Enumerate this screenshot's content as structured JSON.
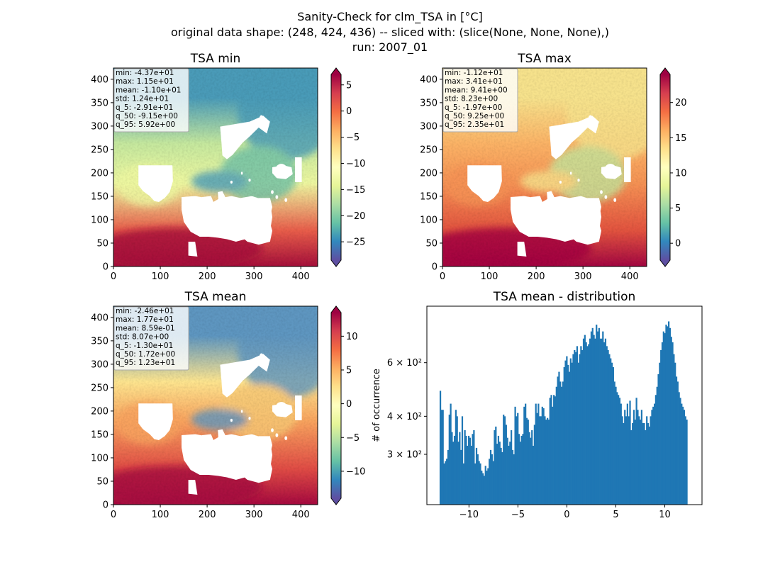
{
  "figure": {
    "title_lines": [
      "Sanity-Check for clm_TSA in [°C]",
      "original data shape: (248, 424, 436) -- sliced with: (slice(None, None, None),)",
      "run: 2007_01"
    ]
  },
  "colors": {
    "bar": "#1f77b4",
    "axes": "#000000",
    "background": "#ffffff"
  },
  "colormap": {
    "name": "Spectral_r",
    "stops": [
      "#5e4fa2",
      "#3288bd",
      "#66c2a5",
      "#abdda4",
      "#e6f598",
      "#ffffbf",
      "#fee08b",
      "#fdae61",
      "#f46d43",
      "#d53e4f",
      "#9e0142"
    ]
  },
  "chart_data": [
    {
      "type": "heatmap",
      "title": "TSA min",
      "xlim": [
        0,
        436
      ],
      "ylim": [
        0,
        424
      ],
      "x_ticks": [
        "0",
        "100",
        "200",
        "300",
        "400"
      ],
      "y_ticks": [
        "0",
        "50",
        "100",
        "150",
        "200",
        "250",
        "300",
        "350",
        "400"
      ],
      "colorbar": {
        "range": [
          -28.5,
          7
        ],
        "ticks": [
          "5",
          "0",
          "−5",
          "−10",
          "−15",
          "−20",
          "−25"
        ],
        "tick_values": [
          5,
          0,
          -5,
          -10,
          -15,
          -20,
          -25
        ]
      },
      "stats": [
        "min: -4.37e+01",
        "max: 1.15e+01",
        "mean: -1.10e+01",
        "std: 1.24e+01",
        "q_5: -2.91e+01",
        "q_50: -9.15e+00",
        "q_95: 5.92e+00"
      ]
    },
    {
      "type": "heatmap",
      "title": "TSA max",
      "xlim": [
        0,
        436
      ],
      "ylim": [
        0,
        424
      ],
      "x_ticks": [
        "0",
        "100",
        "200",
        "300",
        "400"
      ],
      "y_ticks": [
        "0",
        "50",
        "100",
        "150",
        "200",
        "250",
        "300",
        "350",
        "400"
      ],
      "colorbar": {
        "range": [
          -2.4,
          24
        ],
        "ticks": [
          "20",
          "15",
          "10",
          "5",
          "0"
        ],
        "tick_values": [
          20,
          15,
          10,
          5,
          0
        ]
      },
      "stats": [
        "min: -1.12e+01",
        "max: 3.41e+01",
        "mean: 9.41e+00",
        "std: 8.23e+00",
        "q_5: -1.97e+00",
        "q_50: 9.25e+00",
        "q_95: 2.35e+01"
      ]
    },
    {
      "type": "heatmap",
      "title": "TSA mean",
      "xlim": [
        0,
        436
      ],
      "ylim": [
        0,
        424
      ],
      "x_ticks": [
        "0",
        "100",
        "200",
        "300",
        "400"
      ],
      "y_ticks": [
        "0",
        "50",
        "100",
        "150",
        "200",
        "250",
        "300",
        "350",
        "400"
      ],
      "colorbar": {
        "range": [
          -14,
          13.5
        ],
        "ticks": [
          "10",
          "5",
          "0",
          "−5",
          "−10"
        ],
        "tick_values": [
          10,
          5,
          0,
          -5,
          -10
        ]
      },
      "stats": [
        "min: -2.46e+01",
        "max: 1.77e+01",
        "mean: 8.59e-01",
        "std: 8.07e+00",
        "q_5: -1.30e+01",
        "q_50: 1.72e+00",
        "q_95: 1.23e+01"
      ]
    },
    {
      "type": "bar",
      "title": "TSA mean - distribution",
      "ylabel": "# of occurrence",
      "y_scale": "log",
      "xlim": [
        -14.3,
        13.8
      ],
      "ylim": [
        205,
        920
      ],
      "x_ticks": [
        "−10",
        "−5",
        "0",
        "5",
        "10"
      ],
      "x_tick_values": [
        -10,
        -5,
        0,
        5,
        10
      ],
      "y_ticks": [
        "3 × 10²",
        "4 × 10²",
        "6 × 10²"
      ],
      "y_tick_values": [
        300,
        400,
        600
      ],
      "bin_range": [
        -13.0,
        12.3
      ],
      "values": [
        485,
        420,
        420,
        280,
        285,
        290,
        310,
        405,
        440,
        355,
        330,
        345,
        420,
        400,
        330,
        355,
        310,
        400,
        280,
        360,
        345,
        320,
        345,
        340,
        320,
        350,
        360,
        280,
        315,
        300,
        285,
        280,
        265,
        260,
        255,
        275,
        265,
        270,
        290,
        310,
        300,
        285,
        360,
        370,
        325,
        345,
        330,
        315,
        305,
        405,
        400,
        375,
        340,
        320,
        330,
        360,
        310,
        300,
        430,
        400,
        410,
        350,
        330,
        345,
        350,
        430,
        440,
        395,
        390,
        355,
        340,
        360,
        320,
        375,
        440,
        410,
        440,
        400,
        400,
        430,
        425,
        400,
        390,
        395,
        390,
        460,
        470,
        430,
        470,
        465,
        500,
        540,
        560,
        520,
        500,
        520,
        580,
        610,
        630,
        590,
        560,
        620,
        600,
        640,
        660,
        650,
        680,
        600,
        640,
        680,
        660,
        720,
        740,
        700,
        680,
        690,
        720,
        760,
        780,
        740,
        720,
        800,
        760,
        780,
        720,
        720,
        760,
        700,
        720,
        680,
        660,
        640,
        620,
        600,
        580,
        520,
        500,
        480,
        470,
        460,
        440,
        400,
        380,
        420,
        400,
        440,
        400,
        450,
        360,
        380,
        420,
        390,
        460,
        420,
        400,
        390,
        420,
        380,
        380,
        360,
        400,
        380,
        370,
        400,
        420,
        430,
        440,
        470,
        500,
        550,
        600,
        660,
        700,
        760,
        750,
        800,
        790,
        820,
        780,
        730,
        700,
        640,
        600,
        540,
        520,
        480,
        460,
        440,
        430,
        420,
        400,
        390
      ]
    }
  ]
}
